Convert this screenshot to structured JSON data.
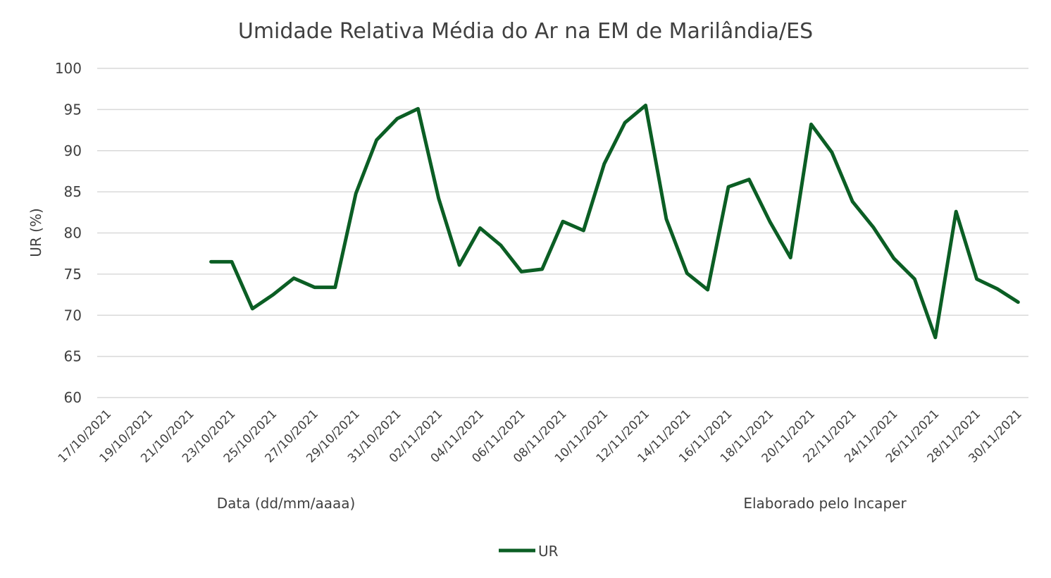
{
  "chart_data": {
    "type": "line",
    "title": "Umidade Relativa Média do Ar na EM de Marilândia/ES",
    "xlabel": "Data (dd/mm/aaaa)",
    "ylabel": "UR (%)",
    "note": "Elaborado pelo Incaper",
    "ylim": [
      60,
      100
    ],
    "yticks": [
      "60",
      "65",
      "70",
      "75",
      "80",
      "85",
      "90",
      "95",
      "100"
    ],
    "grid": true,
    "legend_position": "bottom",
    "line_color": "#0b5e24",
    "x": [
      "17/10/2021",
      "18/10/2021",
      "19/10/2021",
      "20/10/2021",
      "21/10/2021",
      "22/10/2021",
      "23/10/2021",
      "24/10/2021",
      "25/10/2021",
      "26/10/2021",
      "27/10/2021",
      "28/10/2021",
      "29/10/2021",
      "30/10/2021",
      "31/10/2021",
      "01/11/2021",
      "02/11/2021",
      "03/11/2021",
      "04/11/2021",
      "05/11/2021",
      "06/11/2021",
      "07/11/2021",
      "08/11/2021",
      "09/11/2021",
      "10/11/2021",
      "11/11/2021",
      "12/11/2021",
      "13/11/2021",
      "14/11/2021",
      "15/11/2021",
      "16/11/2021",
      "17/11/2021",
      "18/11/2021",
      "19/11/2021",
      "20/11/2021",
      "21/11/2021",
      "22/11/2021",
      "23/11/2021",
      "24/11/2021",
      "25/11/2021",
      "26/11/2021",
      "27/11/2021",
      "28/11/2021",
      "29/11/2021",
      "30/11/2021"
    ],
    "xtick_labels": [
      "17/10/2021",
      "19/10/2021",
      "21/10/2021",
      "23/10/2021",
      "25/10/2021",
      "27/10/2021",
      "29/10/2021",
      "31/10/2021",
      "02/11/2021",
      "04/11/2021",
      "06/11/2021",
      "08/11/2021",
      "10/11/2021",
      "12/11/2021",
      "14/11/2021",
      "16/11/2021",
      "18/11/2021",
      "20/11/2021",
      "22/11/2021",
      "24/11/2021",
      "26/11/2021",
      "28/11/2021",
      "30/11/2021"
    ],
    "series": [
      {
        "name": "UR",
        "values": [
          null,
          null,
          null,
          null,
          null,
          76.5,
          76.5,
          70.8,
          72.5,
          74.5,
          73.4,
          73.4,
          84.8,
          91.3,
          93.9,
          95.1,
          84.2,
          76.1,
          80.6,
          78.5,
          75.3,
          75.6,
          81.4,
          80.3,
          88.4,
          93.4,
          95.5,
          81.7,
          75.1,
          73.1,
          85.6,
          86.5,
          81.4,
          77.0,
          93.2,
          89.8,
          83.8,
          80.7,
          76.9,
          74.4,
          67.3,
          82.6,
          74.4,
          73.2,
          71.6
        ]
      }
    ]
  }
}
